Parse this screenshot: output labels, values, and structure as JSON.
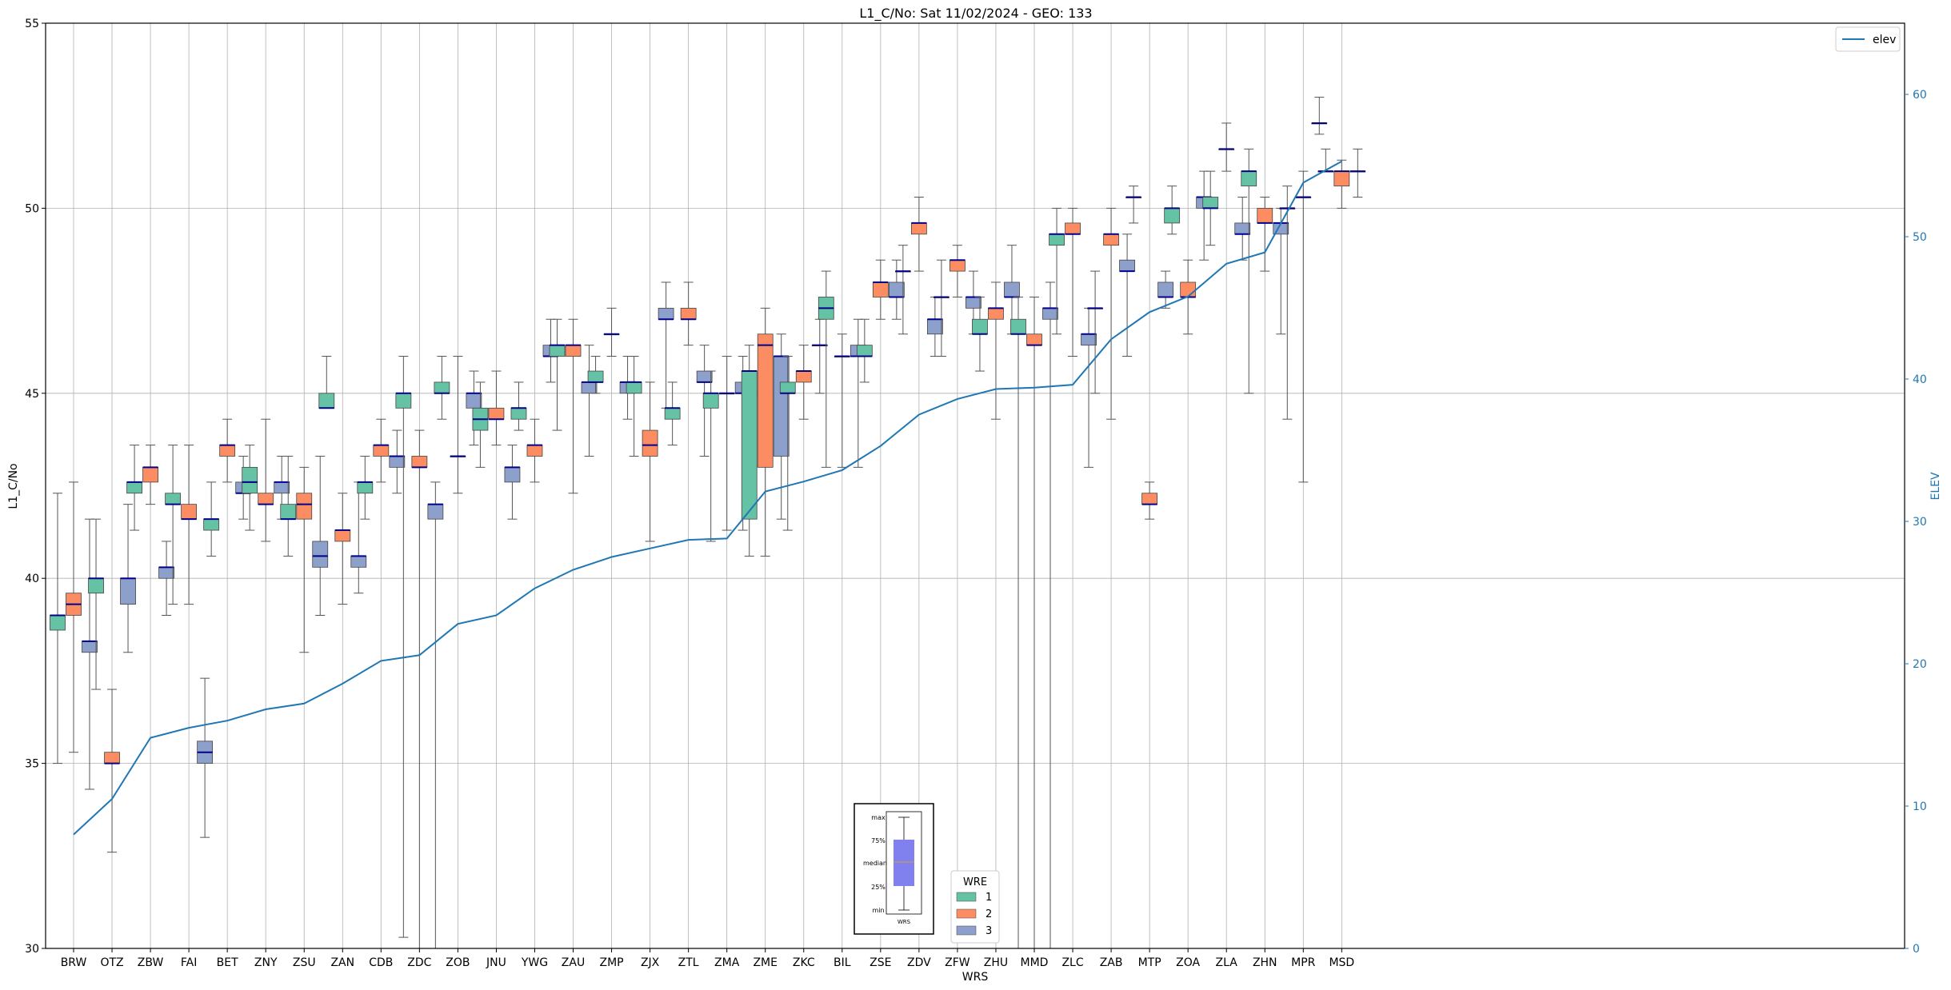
{
  "chart_data": {
    "type": "box",
    "title": "L1_C/No: Sat 11/02/2024 - GEO: 133",
    "xlabel": "WRS",
    "ylabel": "L1_C/No",
    "y2label": "ELEV",
    "ylim": [
      30,
      55
    ],
    "y2lim": [
      0,
      65
    ],
    "yticks": [
      30,
      35,
      40,
      45,
      50,
      55
    ],
    "y2ticks": [
      0,
      10,
      20,
      30,
      40,
      50,
      60
    ],
    "grid": true,
    "categories": [
      "BRW",
      "OTZ",
      "ZBW",
      "FAI",
      "BET",
      "ZNY",
      "ZSU",
      "ZAN",
      "CDB",
      "ZDC",
      "ZOB",
      "JNU",
      "YWG",
      "ZAU",
      "ZMP",
      "ZJX",
      "ZTL",
      "ZMA",
      "ZME",
      "ZKC",
      "BIL",
      "ZSE",
      "ZDV",
      "ZFW",
      "ZHU",
      "MMD",
      "ZLC",
      "ZAB",
      "MTP",
      "ZOA",
      "ZLA",
      "ZHN",
      "MPR",
      "MSD"
    ],
    "legend_line": {
      "label": "elev",
      "position": "top-right",
      "color": "#1f77b4"
    },
    "legend_boxes": {
      "title": "WRE",
      "position": "lower-center",
      "entries": [
        {
          "label": "1",
          "color": "#66c2a5"
        },
        {
          "label": "2",
          "color": "#fc8d62"
        },
        {
          "label": "3",
          "color": "#8da0cb"
        }
      ]
    },
    "box_guide": {
      "labels": [
        "max",
        "75%",
        "median",
        "25%",
        "min"
      ],
      "xlabel": "WRS",
      "color": "#8080ee"
    },
    "colors": {
      "1": "#66c2a5",
      "2": "#fc8d62",
      "3": "#8da0cb",
      "median": "#00008b",
      "elev": "#1f77b4"
    },
    "elev": [
      8,
      10.5,
      14.8,
      15.5,
      16,
      16.8,
      17.2,
      18.6,
      20.2,
      20.6,
      22.8,
      23.4,
      25.3,
      26.6,
      27.5,
      28.1,
      28.7,
      28.8,
      32.1,
      32.8,
      33.6,
      35.3,
      37.5,
      38.6,
      39.3,
      39.4,
      39.6,
      42.8,
      44.7,
      45.8,
      48.1,
      48.9,
      53.8,
      55.3
    ],
    "boxes": [
      {
        "cat": "BRW",
        "wre": 1,
        "min": 35.0,
        "q1": 38.6,
        "med": 39.0,
        "q3": 39.0,
        "max": 42.3
      },
      {
        "cat": "BRW",
        "wre": 2,
        "min": 35.3,
        "q1": 39.0,
        "med": 39.3,
        "q3": 39.6,
        "max": 42.6
      },
      {
        "cat": "BRW",
        "wre": 3,
        "min": 34.3,
        "q1": 38.0,
        "med": 38.3,
        "q3": 38.3,
        "max": 41.6
      },
      {
        "cat": "OTZ",
        "wre": 1,
        "min": 37.0,
        "q1": 39.6,
        "med": 40.0,
        "q3": 40.0,
        "max": 41.6
      },
      {
        "cat": "OTZ",
        "wre": 2,
        "min": 32.6,
        "q1": 35.0,
        "med": 35.0,
        "q3": 35.3,
        "max": 37.0
      },
      {
        "cat": "OTZ",
        "wre": 3,
        "min": 38.0,
        "q1": 39.3,
        "med": 40.0,
        "q3": 40.0,
        "max": 42.0
      },
      {
        "cat": "ZBW",
        "wre": 1,
        "min": 41.3,
        "q1": 42.3,
        "med": 42.6,
        "q3": 42.6,
        "max": 43.6
      },
      {
        "cat": "ZBW",
        "wre": 2,
        "min": 42.0,
        "q1": 42.6,
        "med": 43.0,
        "q3": 43.0,
        "max": 43.6
      },
      {
        "cat": "ZBW",
        "wre": 3,
        "min": 39.0,
        "q1": 40.0,
        "med": 40.3,
        "q3": 40.3,
        "max": 41.0
      },
      {
        "cat": "FAI",
        "wre": 1,
        "min": 39.3,
        "q1": 42.0,
        "med": 42.0,
        "q3": 42.3,
        "max": 43.6
      },
      {
        "cat": "FAI",
        "wre": 2,
        "min": 39.3,
        "q1": 41.6,
        "med": 41.6,
        "q3": 42.0,
        "max": 43.6
      },
      {
        "cat": "FAI",
        "wre": 3,
        "min": 33.0,
        "q1": 35.0,
        "med": 35.3,
        "q3": 35.6,
        "max": 37.3
      },
      {
        "cat": "BET",
        "wre": 1,
        "min": 40.6,
        "q1": 41.3,
        "med": 41.6,
        "q3": 41.6,
        "max": 42.6
      },
      {
        "cat": "BET",
        "wre": 2,
        "min": 42.6,
        "q1": 43.3,
        "med": 43.6,
        "q3": 43.6,
        "max": 44.3
      },
      {
        "cat": "BET",
        "wre": 3,
        "min": 41.6,
        "q1": 42.3,
        "med": 42.3,
        "q3": 42.6,
        "max": 43.3
      },
      {
        "cat": "ZNY",
        "wre": 1,
        "min": 41.3,
        "q1": 42.3,
        "med": 42.6,
        "q3": 43.0,
        "max": 43.6
      },
      {
        "cat": "ZNY",
        "wre": 2,
        "min": 41.0,
        "q1": 42.0,
        "med": 42.0,
        "q3": 42.3,
        "max": 44.3
      },
      {
        "cat": "ZNY",
        "wre": 3,
        "min": 41.6,
        "q1": 42.3,
        "med": 42.6,
        "q3": 42.6,
        "max": 43.3
      },
      {
        "cat": "ZSU",
        "wre": 1,
        "min": 40.6,
        "q1": 41.6,
        "med": 41.6,
        "q3": 42.0,
        "max": 43.3
      },
      {
        "cat": "ZSU",
        "wre": 2,
        "min": 38.0,
        "q1": 41.6,
        "med": 42.0,
        "q3": 42.3,
        "max": 43.0
      },
      {
        "cat": "ZSU",
        "wre": 3,
        "min": 39.0,
        "q1": 40.3,
        "med": 40.6,
        "q3": 41.0,
        "max": 43.3
      },
      {
        "cat": "ZAN",
        "wre": 1,
        "min": 44.6,
        "q1": 44.6,
        "med": 44.6,
        "q3": 45.0,
        "max": 46.0
      },
      {
        "cat": "ZAN",
        "wre": 2,
        "min": 39.3,
        "q1": 41.0,
        "med": 41.3,
        "q3": 41.3,
        "max": 42.3
      },
      {
        "cat": "ZAN",
        "wre": 3,
        "min": 39.6,
        "q1": 40.3,
        "med": 40.6,
        "q3": 40.6,
        "max": 42.6
      },
      {
        "cat": "CDB",
        "wre": 1,
        "min": 41.6,
        "q1": 42.3,
        "med": 42.6,
        "q3": 42.6,
        "max": 43.3
      },
      {
        "cat": "CDB",
        "wre": 2,
        "min": 42.6,
        "q1": 43.3,
        "med": 43.6,
        "q3": 43.6,
        "max": 44.3
      },
      {
        "cat": "CDB",
        "wre": 3,
        "min": 42.3,
        "q1": 43.0,
        "med": 43.3,
        "q3": 43.3,
        "max": 44.0
      },
      {
        "cat": "ZDC",
        "wre": 1,
        "min": 30.3,
        "q1": 44.6,
        "med": 45.0,
        "q3": 45.0,
        "max": 46.0
      },
      {
        "cat": "ZDC",
        "wre": 2,
        "min": 30.0,
        "q1": 43.0,
        "med": 43.0,
        "q3": 43.3,
        "max": 44.0
      },
      {
        "cat": "ZDC",
        "wre": 3,
        "min": 30.0,
        "q1": 41.6,
        "med": 42.0,
        "q3": 42.0,
        "max": 42.6
      },
      {
        "cat": "ZOB",
        "wre": 1,
        "min": 44.3,
        "q1": 45.0,
        "med": 45.0,
        "q3": 45.3,
        "max": 46.0
      },
      {
        "cat": "ZOB",
        "wre": 2,
        "min": 42.3,
        "q1": 43.3,
        "med": 43.3,
        "q3": 43.3,
        "max": 46.0
      },
      {
        "cat": "ZOB",
        "wre": 3,
        "min": 43.6,
        "q1": 44.6,
        "med": 45.0,
        "q3": 45.0,
        "max": 45.6
      },
      {
        "cat": "JNU",
        "wre": 1,
        "min": 43.0,
        "q1": 44.0,
        "med": 44.3,
        "q3": 44.6,
        "max": 45.3
      },
      {
        "cat": "JNU",
        "wre": 2,
        "min": 43.6,
        "q1": 44.3,
        "med": 44.3,
        "q3": 44.6,
        "max": 45.6
      },
      {
        "cat": "JNU",
        "wre": 3,
        "min": 41.6,
        "q1": 42.6,
        "med": 43.0,
        "q3": 43.0,
        "max": 43.6
      },
      {
        "cat": "YWG",
        "wre": 1,
        "min": 44.0,
        "q1": 44.3,
        "med": 44.6,
        "q3": 44.6,
        "max": 45.3
      },
      {
        "cat": "YWG",
        "wre": 2,
        "min": 42.6,
        "q1": 43.3,
        "med": 43.6,
        "q3": 43.6,
        "max": 44.3
      },
      {
        "cat": "YWG",
        "wre": 3,
        "min": 45.3,
        "q1": 46.0,
        "med": 46.0,
        "q3": 46.3,
        "max": 47.0
      },
      {
        "cat": "ZAU",
        "wre": 1,
        "min": 44.0,
        "q1": 46.0,
        "med": 46.3,
        "q3": 46.3,
        "max": 47.0
      },
      {
        "cat": "ZAU",
        "wre": 2,
        "min": 42.3,
        "q1": 46.0,
        "med": 46.3,
        "q3": 46.3,
        "max": 47.0
      },
      {
        "cat": "ZAU",
        "wre": 3,
        "min": 43.3,
        "q1": 45.0,
        "med": 45.3,
        "q3": 45.3,
        "max": 46.3
      },
      {
        "cat": "ZMP",
        "wre": 1,
        "min": 45.0,
        "q1": 45.3,
        "med": 45.3,
        "q3": 45.6,
        "max": 46.0
      },
      {
        "cat": "ZMP",
        "wre": 2,
        "min": 46.0,
        "q1": 46.6,
        "med": 46.6,
        "q3": 46.6,
        "max": 47.3
      },
      {
        "cat": "ZMP",
        "wre": 3,
        "min": 44.3,
        "q1": 45.0,
        "med": 45.3,
        "q3": 45.3,
        "max": 46.0
      },
      {
        "cat": "ZJX",
        "wre": 1,
        "min": 43.3,
        "q1": 45.0,
        "med": 45.3,
        "q3": 45.3,
        "max": 46.0
      },
      {
        "cat": "ZJX",
        "wre": 2,
        "min": 41.0,
        "q1": 43.3,
        "med": 43.6,
        "q3": 44.0,
        "max": 45.3
      },
      {
        "cat": "ZJX",
        "wre": 3,
        "min": 44.6,
        "q1": 47.0,
        "med": 47.0,
        "q3": 47.3,
        "max": 48.0
      },
      {
        "cat": "ZTL",
        "wre": 1,
        "min": 43.6,
        "q1": 44.3,
        "med": 44.6,
        "q3": 44.6,
        "max": 45.3
      },
      {
        "cat": "ZTL",
        "wre": 2,
        "min": 46.3,
        "q1": 47.0,
        "med": 47.0,
        "q3": 47.3,
        "max": 48.0
      },
      {
        "cat": "ZTL",
        "wre": 3,
        "min": 43.3,
        "q1": 45.3,
        "med": 45.3,
        "q3": 45.6,
        "max": 46.3
      },
      {
        "cat": "ZMA",
        "wre": 1,
        "min": 41.0,
        "q1": 44.6,
        "med": 45.0,
        "q3": 45.0,
        "max": 45.6
      },
      {
        "cat": "ZMA",
        "wre": 2,
        "min": 41.3,
        "q1": 45.0,
        "med": 45.0,
        "q3": 45.0,
        "max": 46.0
      },
      {
        "cat": "ZMA",
        "wre": 3,
        "min": 41.3,
        "q1": 45.0,
        "med": 45.0,
        "q3": 45.3,
        "max": 46.0
      },
      {
        "cat": "ZME",
        "wre": 1,
        "min": 40.6,
        "q1": 41.6,
        "med": 45.6,
        "q3": 45.6,
        "max": 46.3
      },
      {
        "cat": "ZME",
        "wre": 2,
        "min": 40.6,
        "q1": 43.0,
        "med": 46.3,
        "q3": 46.6,
        "max": 47.3
      },
      {
        "cat": "ZME",
        "wre": 3,
        "min": 41.6,
        "q1": 43.3,
        "med": 46.0,
        "q3": 46.0,
        "max": 46.6
      },
      {
        "cat": "ZKC",
        "wre": 1,
        "min": 41.3,
        "q1": 45.0,
        "med": 45.0,
        "q3": 45.3,
        "max": 46.0
      },
      {
        "cat": "ZKC",
        "wre": 2,
        "min": 44.3,
        "q1": 45.3,
        "med": 45.6,
        "q3": 45.6,
        "max": 46.3
      },
      {
        "cat": "ZKC",
        "wre": 3,
        "min": 45.0,
        "q1": 46.3,
        "med": 46.3,
        "q3": 46.3,
        "max": 47.0
      },
      {
        "cat": "BIL",
        "wre": 1,
        "min": 43.0,
        "q1": 47.0,
        "med": 47.3,
        "q3": 47.6,
        "max": 48.3
      },
      {
        "cat": "BIL",
        "wre": 2,
        "min": 43.0,
        "q1": 46.0,
        "med": 46.0,
        "q3": 46.0,
        "max": 46.6
      },
      {
        "cat": "BIL",
        "wre": 3,
        "min": 43.0,
        "q1": 46.0,
        "med": 46.0,
        "q3": 46.3,
        "max": 47.0
      },
      {
        "cat": "ZSE",
        "wre": 1,
        "min": 45.3,
        "q1": 46.0,
        "med": 46.0,
        "q3": 46.3,
        "max": 47.0
      },
      {
        "cat": "ZSE",
        "wre": 2,
        "min": 47.0,
        "q1": 47.6,
        "med": 48.0,
        "q3": 48.0,
        "max": 48.6
      },
      {
        "cat": "ZSE",
        "wre": 3,
        "min": 47.0,
        "q1": 47.6,
        "med": 47.6,
        "q3": 48.0,
        "max": 48.6
      },
      {
        "cat": "ZDV",
        "wre": 1,
        "min": 46.6,
        "q1": 48.3,
        "med": 48.3,
        "q3": 48.3,
        "max": 49.0
      },
      {
        "cat": "ZDV",
        "wre": 2,
        "min": 48.3,
        "q1": 49.3,
        "med": 49.6,
        "q3": 49.6,
        "max": 50.3
      },
      {
        "cat": "ZDV",
        "wre": 3,
        "min": 46.0,
        "q1": 46.6,
        "med": 47.0,
        "q3": 47.0,
        "max": 47.6
      },
      {
        "cat": "ZFW",
        "wre": 1,
        "min": 46.0,
        "q1": 47.6,
        "med": 47.6,
        "q3": 47.6,
        "max": 48.6
      },
      {
        "cat": "ZFW",
        "wre": 2,
        "min": 47.6,
        "q1": 48.3,
        "med": 48.6,
        "q3": 48.6,
        "max": 49.0
      },
      {
        "cat": "ZFW",
        "wre": 3,
        "min": 46.6,
        "q1": 47.3,
        "med": 47.6,
        "q3": 47.6,
        "max": 48.3
      },
      {
        "cat": "ZHU",
        "wre": 1,
        "min": 45.6,
        "q1": 46.6,
        "med": 46.6,
        "q3": 47.0,
        "max": 47.6
      },
      {
        "cat": "ZHU",
        "wre": 2,
        "min": 44.3,
        "q1": 47.0,
        "med": 47.3,
        "q3": 47.3,
        "max": 48.0
      },
      {
        "cat": "ZHU",
        "wre": 3,
        "min": 46.6,
        "q1": 47.6,
        "med": 47.6,
        "q3": 48.0,
        "max": 49.0
      },
      {
        "cat": "MMD",
        "wre": 1,
        "min": 30.0,
        "q1": 46.6,
        "med": 46.6,
        "q3": 47.0,
        "max": 47.6
      },
      {
        "cat": "MMD",
        "wre": 2,
        "min": 30.0,
        "q1": 46.3,
        "med": 46.3,
        "q3": 46.6,
        "max": 47.6
      },
      {
        "cat": "MMD",
        "wre": 3,
        "min": 30.0,
        "q1": 47.0,
        "med": 47.3,
        "q3": 47.3,
        "max": 48.0
      },
      {
        "cat": "ZLC",
        "wre": 1,
        "min": 46.6,
        "q1": 49.0,
        "med": 49.3,
        "q3": 49.3,
        "max": 50.0
      },
      {
        "cat": "ZLC",
        "wre": 2,
        "min": 46.0,
        "q1": 49.3,
        "med": 49.3,
        "q3": 49.6,
        "max": 50.0
      },
      {
        "cat": "ZLC",
        "wre": 3,
        "min": 43.0,
        "q1": 46.3,
        "med": 46.6,
        "q3": 46.6,
        "max": 47.3
      },
      {
        "cat": "ZAB",
        "wre": 1,
        "min": 45.0,
        "q1": 47.3,
        "med": 47.3,
        "q3": 47.3,
        "max": 48.3
      },
      {
        "cat": "ZAB",
        "wre": 2,
        "min": 44.3,
        "q1": 49.0,
        "med": 49.3,
        "q3": 49.3,
        "max": 50.0
      },
      {
        "cat": "ZAB",
        "wre": 3,
        "min": 46.0,
        "q1": 48.3,
        "med": 48.3,
        "q3": 48.6,
        "max": 49.3
      },
      {
        "cat": "MTP",
        "wre": 1,
        "min": 49.6,
        "q1": 50.3,
        "med": 50.3,
        "q3": 50.3,
        "max": 50.6
      },
      {
        "cat": "MTP",
        "wre": 2,
        "min": 41.6,
        "q1": 42.0,
        "med": 42.0,
        "q3": 42.3,
        "max": 42.6
      },
      {
        "cat": "MTP",
        "wre": 3,
        "min": 47.3,
        "q1": 47.6,
        "med": 47.6,
        "q3": 48.0,
        "max": 48.3
      },
      {
        "cat": "ZOA",
        "wre": 1,
        "min": 49.3,
        "q1": 49.6,
        "med": 50.0,
        "q3": 50.0,
        "max": 50.6
      },
      {
        "cat": "ZOA",
        "wre": 2,
        "min": 46.6,
        "q1": 47.6,
        "med": 47.6,
        "q3": 48.0,
        "max": 48.6
      },
      {
        "cat": "ZOA",
        "wre": 3,
        "min": 48.6,
        "q1": 50.0,
        "med": 50.3,
        "q3": 50.3,
        "max": 51.0
      },
      {
        "cat": "ZLA",
        "wre": 1,
        "min": 49.0,
        "q1": 50.0,
        "med": 50.0,
        "q3": 50.3,
        "max": 51.0
      },
      {
        "cat": "ZLA",
        "wre": 2,
        "min": 51.0,
        "q1": 51.6,
        "med": 51.6,
        "q3": 51.6,
        "max": 52.3
      },
      {
        "cat": "ZLA",
        "wre": 3,
        "min": 48.6,
        "q1": 49.3,
        "med": 49.3,
        "q3": 49.6,
        "max": 50.3
      },
      {
        "cat": "ZHN",
        "wre": 1,
        "min": 45.0,
        "q1": 50.6,
        "med": 51.0,
        "q3": 51.0,
        "max": 51.6
      },
      {
        "cat": "ZHN",
        "wre": 2,
        "min": 48.3,
        "q1": 49.6,
        "med": 49.6,
        "q3": 50.0,
        "max": 50.3
      },
      {
        "cat": "ZHN",
        "wre": 3,
        "min": 46.6,
        "q1": 49.3,
        "med": 49.6,
        "q3": 49.6,
        "max": 50.0
      },
      {
        "cat": "MPR",
        "wre": 1,
        "min": 44.3,
        "q1": 50.0,
        "med": 50.0,
        "q3": 50.0,
        "max": 50.6
      },
      {
        "cat": "MPR",
        "wre": 2,
        "min": 42.6,
        "q1": 50.3,
        "med": 50.3,
        "q3": 50.3,
        "max": 51.0
      },
      {
        "cat": "MPR",
        "wre": 3,
        "min": 52.0,
        "q1": 52.3,
        "med": 52.3,
        "q3": 52.3,
        "max": 53.0
      },
      {
        "cat": "MSD",
        "wre": 1,
        "min": 51.0,
        "q1": 51.0,
        "med": 51.0,
        "q3": 51.0,
        "max": 51.6
      },
      {
        "cat": "MSD",
        "wre": 2,
        "min": 50.0,
        "q1": 50.6,
        "med": 51.0,
        "q3": 51.0,
        "max": 51.3
      },
      {
        "cat": "MSD",
        "wre": 3,
        "min": 50.3,
        "q1": 51.0,
        "med": 51.0,
        "q3": 51.0,
        "max": 51.6
      }
    ]
  }
}
